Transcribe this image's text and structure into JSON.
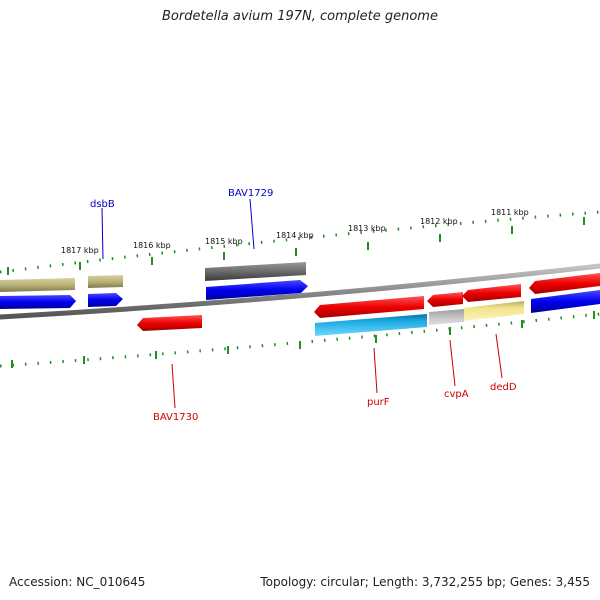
{
  "title": "Bordetella avium 197N, complete genome",
  "footer": {
    "accession": "Accession: NC_010645",
    "stats": "Topology: circular; Length: 3,732,255 bp; Genes: 3,455"
  },
  "ruler_labels": [
    "1817 kbp",
    "1816 kbp",
    "1815 kbp",
    "1814 kbp",
    "1813 kbp",
    "1812 kbp",
    "1811 kbp"
  ],
  "gene_labels": {
    "dsbB": "dsbB",
    "BAV1729": "BAV1729",
    "BAV1730": "BAV1730",
    "purF": "purF",
    "cvpA": "cvpA",
    "dedD": "dedD"
  },
  "colors": {
    "forward_cds": "#0000ee",
    "reverse_cds": "#ee0000",
    "olive_track": "#b5ae74",
    "gray_track": "#666666",
    "cyan_track": "#1aa7e0",
    "light_gray_track": "#bdbdbd",
    "pale_yellow_track": "#f2e38a",
    "backbone": "#8a8a8a",
    "tick_green": "#1f8f1f"
  }
}
